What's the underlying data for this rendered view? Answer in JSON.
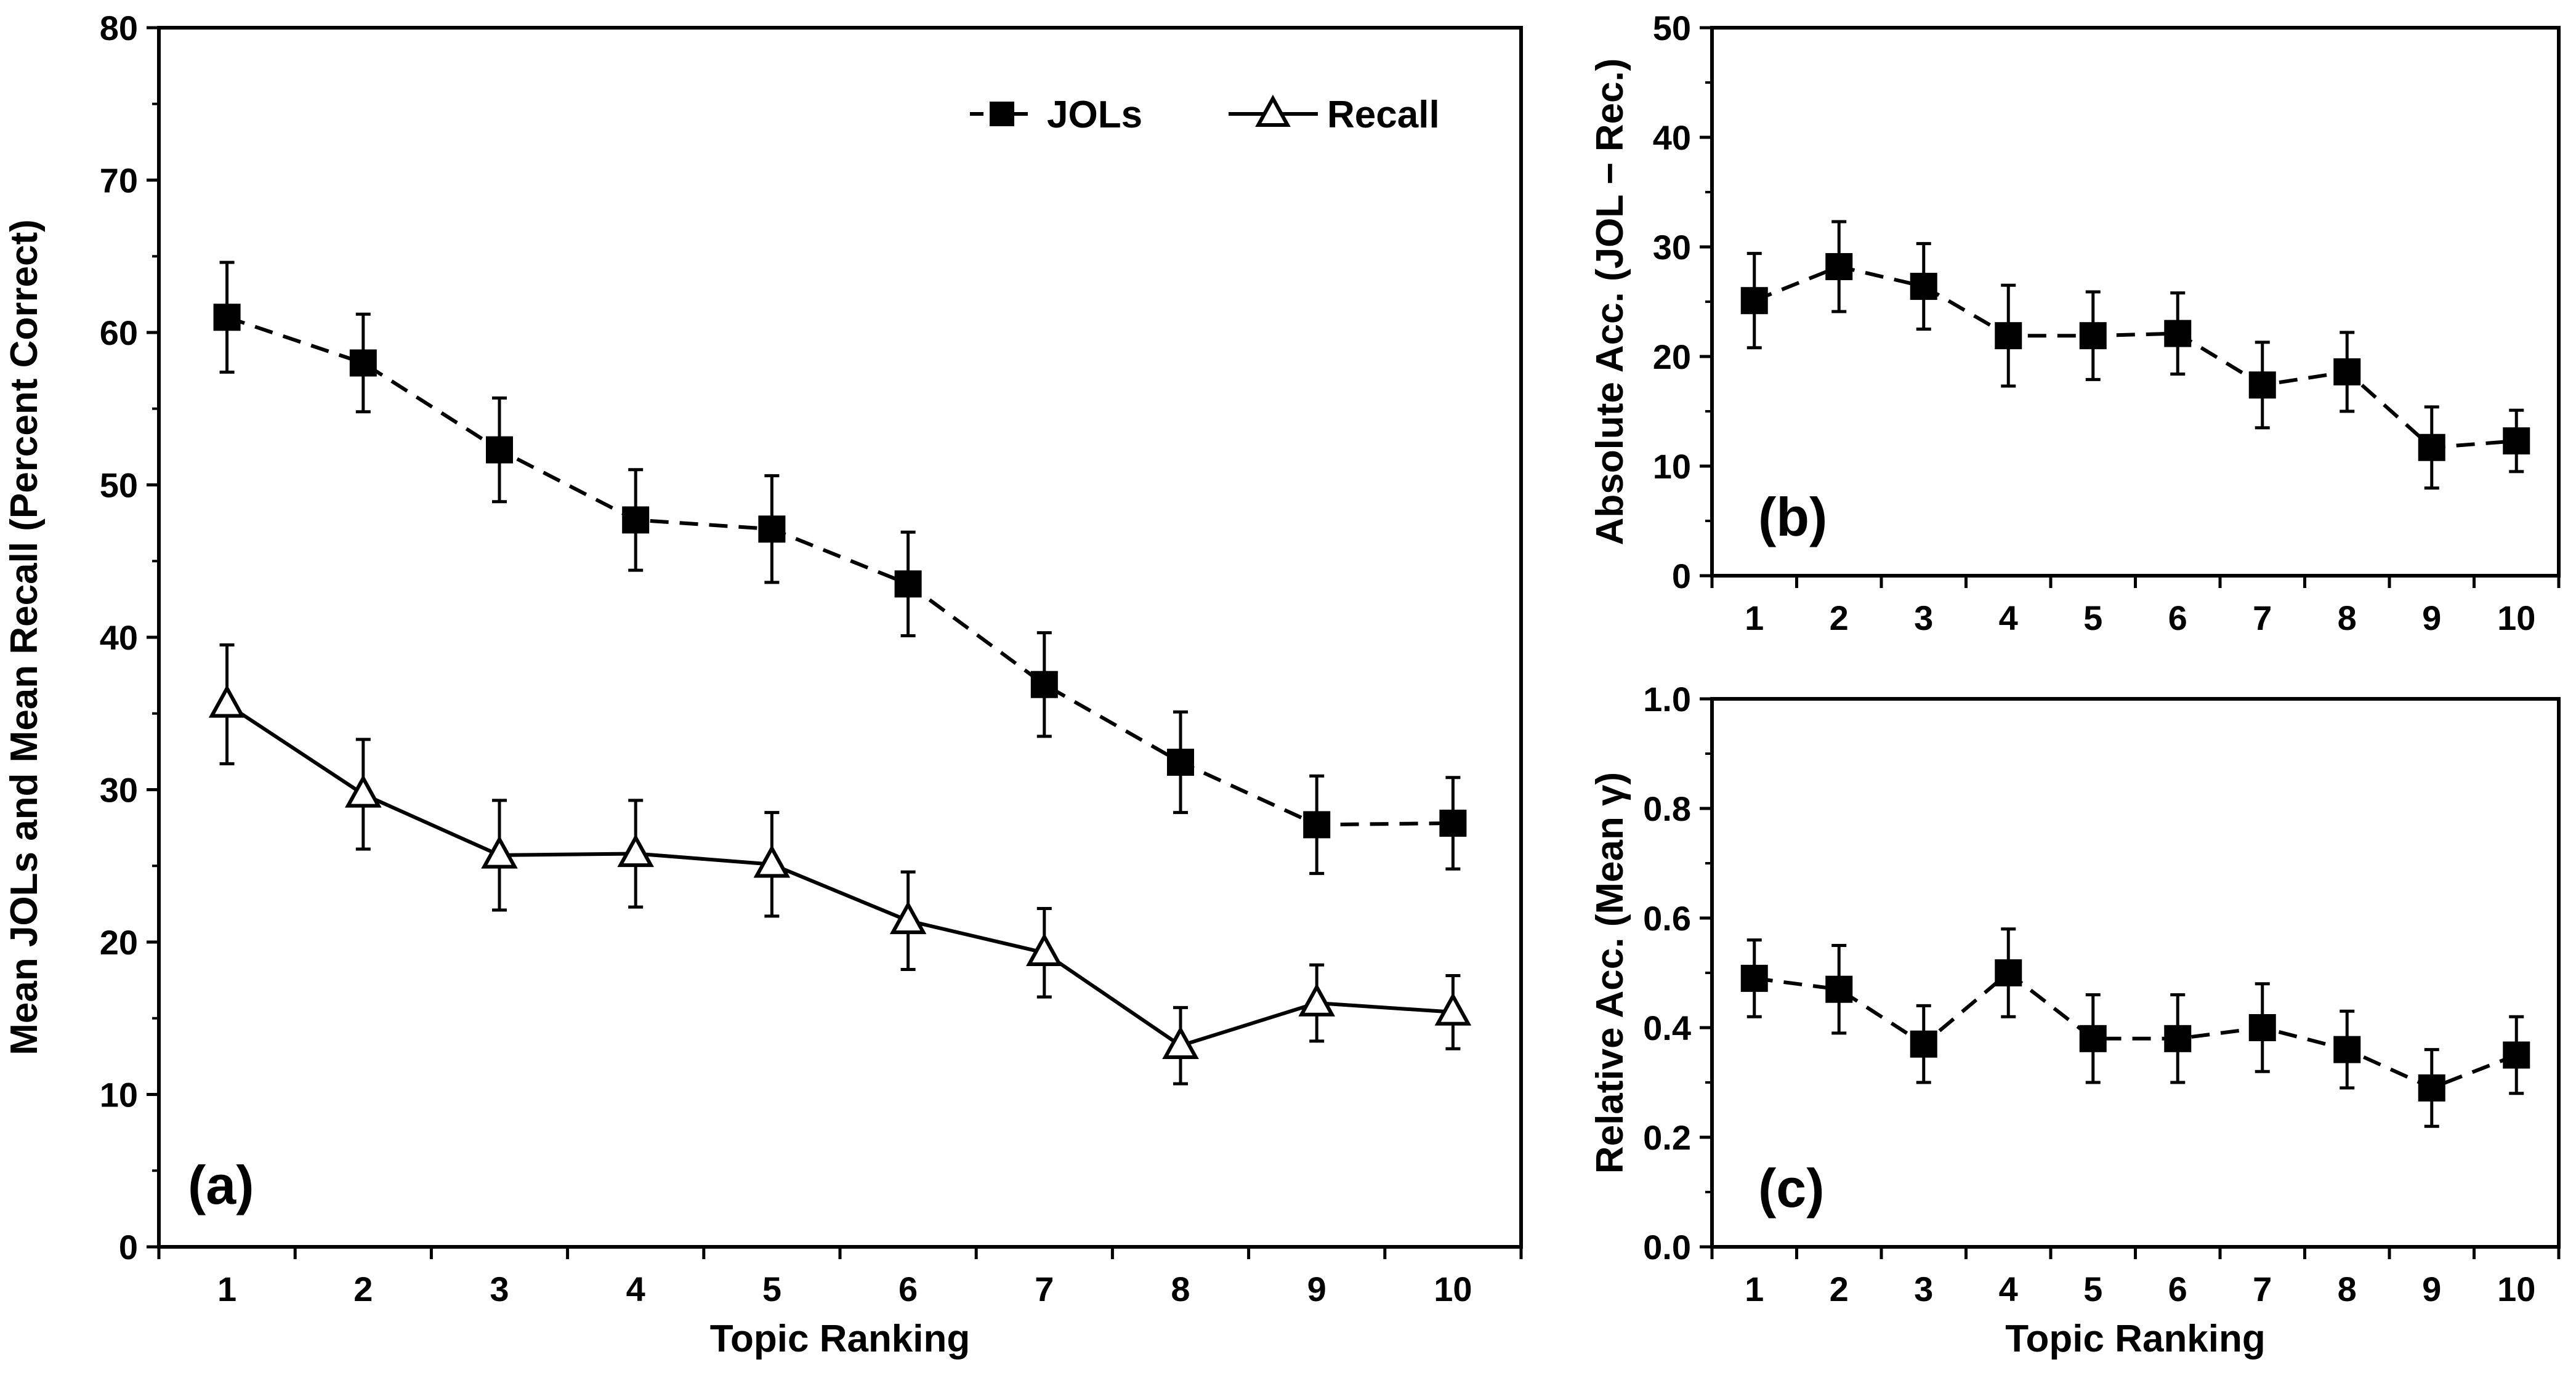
{
  "chart_data": [
    {
      "id": "a",
      "type": "line",
      "panel_label": "(a)",
      "xlabel": "Topic Ranking",
      "ylabel": "Mean JOLs and Mean Recall (Percent Correct)",
      "ylim": [
        0,
        80
      ],
      "yticks": [
        0,
        10,
        20,
        30,
        40,
        50,
        60,
        70,
        80
      ],
      "ytick_labels": [
        "0",
        "10",
        "20",
        "30",
        "40",
        "50",
        "60",
        "70",
        "80"
      ],
      "categories": [
        "1",
        "2",
        "3",
        "4",
        "5",
        "6",
        "7",
        "8",
        "9",
        "10"
      ],
      "legend_position": "top-right",
      "series": [
        {
          "name": "JOLs",
          "line": "dashed",
          "marker": "square-filled",
          "values": [
            61,
            58,
            52.3,
            47.7,
            47.1,
            43.5,
            36.9,
            31.8,
            27.7,
            27.8
          ],
          "error": [
            3.6,
            3.2,
            3.4,
            3.3,
            3.5,
            3.4,
            3.4,
            3.3,
            3.2,
            3.0
          ]
        },
        {
          "name": "Recall",
          "line": "solid",
          "marker": "triangle-open",
          "values": [
            35.6,
            29.7,
            25.7,
            25.8,
            25.1,
            21.4,
            19.3,
            13.2,
            16,
            15.4
          ],
          "error": [
            3.9,
            3.6,
            3.6,
            3.5,
            3.4,
            3.2,
            2.9,
            2.5,
            2.5,
            2.4
          ]
        }
      ]
    },
    {
      "id": "b",
      "type": "line",
      "panel_label": "(b)",
      "xlabel": "",
      "ylabel": "Absolute Acc. (JOL − Rec.)",
      "ylim": [
        0,
        50
      ],
      "yticks": [
        0,
        10,
        20,
        30,
        40,
        50
      ],
      "ytick_labels": [
        "0",
        "10",
        "20",
        "30",
        "40",
        "50"
      ],
      "categories": [
        "1",
        "2",
        "3",
        "4",
        "5",
        "6",
        "7",
        "8",
        "9",
        "10"
      ],
      "series": [
        {
          "name": "Absolute Acc.",
          "line": "dashed",
          "marker": "square-filled",
          "values": [
            25.1,
            28.2,
            26.4,
            21.9,
            21.9,
            22.1,
            17.4,
            18.6,
            11.7,
            12.3
          ],
          "error": [
            4.3,
            4.1,
            3.9,
            4.6,
            4.0,
            3.7,
            3.9,
            3.6,
            3.7,
            2.8
          ]
        }
      ]
    },
    {
      "id": "c",
      "type": "line",
      "panel_label": "(c)",
      "xlabel": "Topic Ranking",
      "ylabel": "Relative Acc. (Mean γ)",
      "ylim": [
        0,
        1
      ],
      "yticks": [
        0,
        0.2,
        0.4,
        0.6,
        0.8,
        1.0
      ],
      "ytick_labels": [
        "0.0",
        "0.2",
        "0.4",
        "0.6",
        "0.8",
        "1.0"
      ],
      "categories": [
        "1",
        "2",
        "3",
        "4",
        "5",
        "6",
        "7",
        "8",
        "9",
        "10"
      ],
      "series": [
        {
          "name": "Relative Acc.",
          "line": "dashed",
          "marker": "square-filled",
          "values": [
            0.49,
            0.47,
            0.37,
            0.5,
            0.38,
            0.38,
            0.4,
            0.36,
            0.29,
            0.35
          ],
          "error": [
            0.07,
            0.08,
            0.07,
            0.08,
            0.08,
            0.08,
            0.08,
            0.07,
            0.07,
            0.07
          ]
        }
      ]
    }
  ]
}
